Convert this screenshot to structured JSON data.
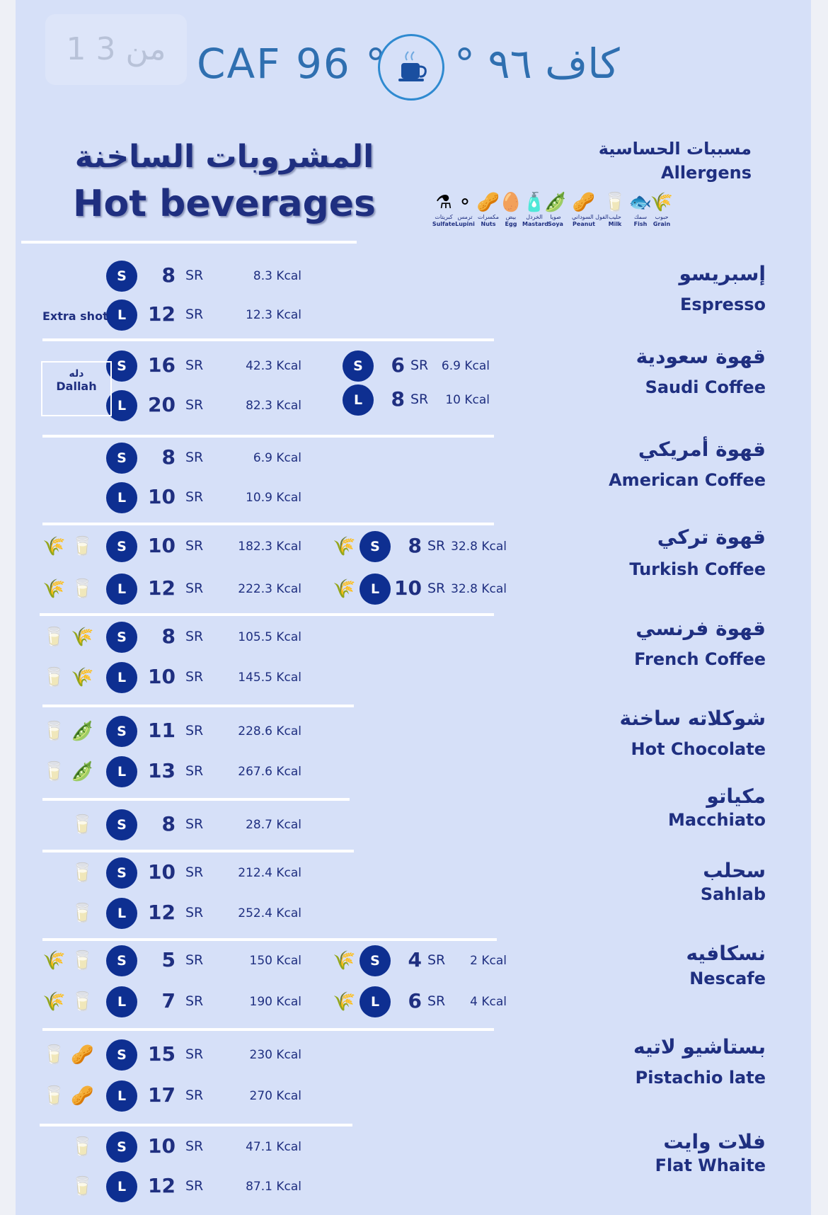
{
  "header": {
    "page_indicator": "1 من 3",
    "brand_latin": "CAF 96 °",
    "brand_arabic": "° كاف ٩٦",
    "logo_icon": "coffee-cup-icon"
  },
  "title": {
    "ar": "المشروبات الساخنة",
    "en": "Hot beverages"
  },
  "allergens": {
    "title_ar": "مسببات الحساسية",
    "title_en": "Allergens",
    "items": [
      {
        "ar": "كبريتات",
        "en": "Sulfate",
        "icon": "flask-icon",
        "glyph": "⚗"
      },
      {
        "ar": "ترمس",
        "en": "Lupini",
        "icon": "lupini-icon",
        "glyph": "⚬"
      },
      {
        "ar": "مكسرات",
        "en": "Nuts",
        "icon": "nut-icon",
        "glyph": "🥜"
      },
      {
        "ar": "بيض",
        "en": "Egg",
        "icon": "egg-icon",
        "glyph": "🥚"
      },
      {
        "ar": "الخردل",
        "en": "Mastard",
        "icon": "mustard-icon",
        "glyph": "🧴"
      },
      {
        "ar": "صويا",
        "en": "Soya",
        "icon": "soy-icon",
        "glyph": "🫛"
      },
      {
        "ar": "الفول السوداني",
        "en": "Peanut",
        "icon": "peanut-icon",
        "glyph": "🥜"
      },
      {
        "ar": "حليب",
        "en": "Milk",
        "icon": "milk-icon",
        "glyph": "🥛"
      },
      {
        "ar": "سمك",
        "en": "Fish",
        "icon": "fish-icon",
        "glyph": "🐟"
      },
      {
        "ar": "حبوب",
        "en": "Grain",
        "icon": "grain-icon",
        "glyph": "🌾"
      }
    ]
  },
  "labels": {
    "s": "S",
    "l": "L",
    "sr": "SR",
    "extra_shot": "Extra shot",
    "dallah_ar": "دله",
    "dallah_en": "Dallah"
  },
  "items": [
    {
      "ar": "إسبريسو",
      "en": "Espresso",
      "left": [
        {
          "size": "S",
          "price": "8",
          "kcal": "8.3 Kcal"
        },
        {
          "size": "L",
          "price": "12",
          "kcal": "12.3 Kcal"
        }
      ]
    },
    {
      "ar": "قهوة سعودية",
      "en": "Saudi Coffee",
      "left": [
        {
          "size": "S",
          "price": "16",
          "kcal": "42.3 Kcal"
        },
        {
          "size": "L",
          "price": "20",
          "kcal": "82.3 Kcal"
        }
      ],
      "right": [
        {
          "size": "S",
          "price": "6",
          "kcal": "6.9 Kcal"
        },
        {
          "size": "L",
          "price": "8",
          "kcal": "10 Kcal"
        }
      ]
    },
    {
      "ar": "قهوة أمريكي",
      "en": "American Coffee",
      "left": [
        {
          "size": "S",
          "price": "8",
          "kcal": "6.9 Kcal"
        },
        {
          "size": "L",
          "price": "10",
          "kcal": "10.9 Kcal"
        }
      ]
    },
    {
      "ar": "قهوة تركي",
      "en": "Turkish Coffee",
      "left": [
        {
          "size": "S",
          "price": "10",
          "kcal": "182.3 Kcal"
        },
        {
          "size": "L",
          "price": "12",
          "kcal": "222.3 Kcal"
        }
      ],
      "right": [
        {
          "size": "S",
          "price": "8",
          "kcal": "32.8 Kcal"
        },
        {
          "size": "L",
          "price": "10",
          "kcal": "32.8 Kcal"
        }
      ]
    },
    {
      "ar": "قهوة فرنسي",
      "en": "French Coffee",
      "left": [
        {
          "size": "S",
          "price": "8",
          "kcal": "105.5 Kcal"
        },
        {
          "size": "L",
          "price": "10",
          "kcal": "145.5 Kcal"
        }
      ]
    },
    {
      "ar": "شوكلاته ساخنة",
      "en": "Hot Chocolate",
      "left": [
        {
          "size": "S",
          "price": "11",
          "kcal": "228.6 Kcal"
        },
        {
          "size": "L",
          "price": "13",
          "kcal": "267.6 Kcal"
        }
      ]
    },
    {
      "ar": "مكياتو",
      "en": "Macchiato",
      "left": [
        {
          "size": "S",
          "price": "8",
          "kcal": "28.7 Kcal"
        }
      ]
    },
    {
      "ar": "سحلب",
      "en": "Sahlab",
      "left": [
        {
          "size": "S",
          "price": "10",
          "kcal": "212.4 Kcal"
        },
        {
          "size": "L",
          "price": "12",
          "kcal": "252.4 Kcal"
        }
      ]
    },
    {
      "ar": "نسكافيه",
      "en": "Nescafe",
      "left": [
        {
          "size": "S",
          "price": "5",
          "kcal": "150 Kcal"
        },
        {
          "size": "L",
          "price": "7",
          "kcal": "190 Kcal"
        }
      ],
      "right": [
        {
          "size": "S",
          "price": "4",
          "kcal": "2 Kcal"
        },
        {
          "size": "L",
          "price": "6",
          "kcal": "4 Kcal"
        }
      ]
    },
    {
      "ar": "بستاشيو لاتيه",
      "en": "Pistachio late",
      "left": [
        {
          "size": "S",
          "price": "15",
          "kcal": "230 Kcal"
        },
        {
          "size": "L",
          "price": "17",
          "kcal": "270 Kcal"
        }
      ]
    },
    {
      "ar": "فلات وايت",
      "en": "Flat Whaite",
      "left": [
        {
          "size": "S",
          "price": "10",
          "kcal": "47.1 Kcal"
        },
        {
          "size": "L",
          "price": "12",
          "kcal": "87.1 Kcal"
        }
      ]
    }
  ],
  "colors": {
    "background": "#d6e0f8",
    "accent": "#0e2f91",
    "text": "#1f2f80",
    "divider": "#ffffff"
  }
}
